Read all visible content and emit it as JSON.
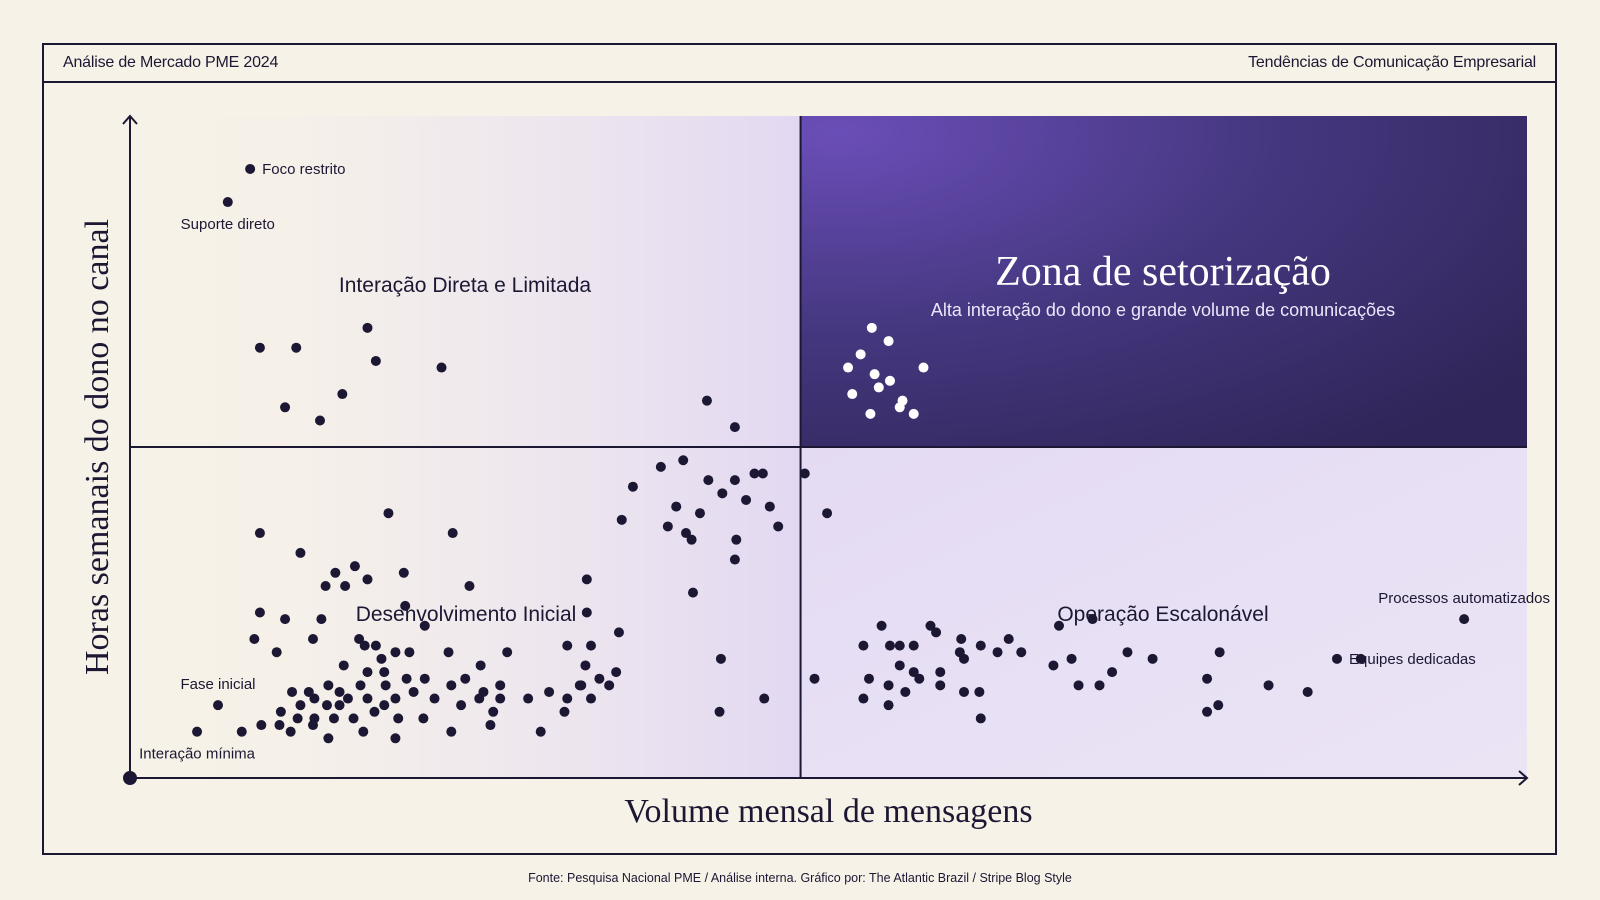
{
  "header": {
    "left": "Análise de Mercado PME 2024",
    "right": "Tendências de Comunicação Empresarial"
  },
  "footer": {
    "source": "Fonte: Pesquisa Nacional PME / Análise interna. Gráfico por: The Atlantic Brazil / Stripe Blog Style"
  },
  "colors": {
    "background": "#f7f2e7",
    "ink": "#1c1733",
    "zone_dark": "#3a2c72",
    "zone_light": "#e6def4",
    "zone_point": "#ffffff"
  },
  "chart_data": {
    "type": "scatter",
    "xlabel": "Volume mensal de mensagens",
    "ylabel": "Horas semanais do dono no canal",
    "xlim": [
      0,
      100
    ],
    "ylim": [
      0,
      100
    ],
    "x_divider": 48,
    "y_divider": 50,
    "grid": false,
    "quadrant_titles": {
      "top_left": "Interação Direta e Limitada",
      "bottom_left": "Desenvolvimento Inicial",
      "bottom_right": "Operação Escalonável",
      "top_right": "Zona de setorização",
      "top_right_subtitle": "Alta interação do dono e grande volume de comunicações"
    },
    "annotations": [
      {
        "text": "Foco restrito",
        "x": 8.6,
        "y": 92,
        "side": "right"
      },
      {
        "text": "Suporte direto",
        "x": 7.0,
        "y": 87,
        "side": "below"
      },
      {
        "text": "Fase inicial",
        "x": 6.3,
        "y": 11,
        "side": "above"
      },
      {
        "text": "Interação mínima",
        "x": 4.8,
        "y": 7,
        "side": "below"
      },
      {
        "text": "Processos automatizados",
        "x": 95.5,
        "y": 24,
        "side": "above"
      },
      {
        "text": "Equipes dedicadas",
        "x": 86.4,
        "y": 18,
        "side": "right"
      }
    ],
    "series": [
      {
        "style": "dark",
        "points": [
          [
            8.6,
            92
          ],
          [
            7.0,
            87
          ],
          [
            9.3,
            65
          ],
          [
            11.9,
            65
          ],
          [
            17.0,
            68
          ],
          [
            17.6,
            63
          ],
          [
            22.3,
            62
          ],
          [
            11.1,
            56
          ],
          [
            15.2,
            58
          ],
          [
            13.6,
            54
          ],
          [
            6.3,
            11
          ],
          [
            4.8,
            7
          ],
          [
            9.3,
            37
          ],
          [
            12.2,
            34
          ],
          [
            14.7,
            31
          ],
          [
            17.0,
            30
          ],
          [
            16.1,
            32
          ],
          [
            19.6,
            31
          ],
          [
            18.5,
            40
          ],
          [
            23.1,
            37
          ],
          [
            9.3,
            25
          ],
          [
            11.1,
            24
          ],
          [
            13.7,
            24
          ],
          [
            14.0,
            29
          ],
          [
            15.4,
            29
          ],
          [
            8.9,
            21
          ],
          [
            16.4,
            21
          ],
          [
            17.6,
            20
          ],
          [
            19.7,
            26
          ],
          [
            21.1,
            23
          ],
          [
            24.3,
            29
          ],
          [
            18.0,
            18
          ],
          [
            19.0,
            19
          ],
          [
            16.8,
            20
          ],
          [
            13.1,
            21
          ],
          [
            10.5,
            19
          ],
          [
            15.3,
            17
          ],
          [
            18.2,
            16
          ],
          [
            20.0,
            19
          ],
          [
            22.8,
            19
          ],
          [
            25.1,
            17
          ],
          [
            27.0,
            19
          ],
          [
            33.0,
            20
          ],
          [
            35.0,
            22
          ],
          [
            11.6,
            13
          ],
          [
            12.8,
            13
          ],
          [
            14.2,
            14
          ],
          [
            15.0,
            13
          ],
          [
            16.5,
            14
          ],
          [
            17.0,
            16
          ],
          [
            18.3,
            14
          ],
          [
            19.8,
            15
          ],
          [
            21.1,
            15
          ],
          [
            23.0,
            14
          ],
          [
            24.0,
            15
          ],
          [
            25.3,
            13
          ],
          [
            26.5,
            14
          ],
          [
            12.2,
            11
          ],
          [
            13.2,
            12
          ],
          [
            14.1,
            11
          ],
          [
            15.0,
            11
          ],
          [
            15.6,
            12
          ],
          [
            17.0,
            12
          ],
          [
            18.2,
            11
          ],
          [
            19.0,
            12
          ],
          [
            20.3,
            13
          ],
          [
            21.8,
            12
          ],
          [
            23.7,
            11
          ],
          [
            25.0,
            12
          ],
          [
            26.5,
            12
          ],
          [
            28.5,
            12
          ],
          [
            30.0,
            13
          ],
          [
            31.3,
            12
          ],
          [
            32.2,
            14
          ],
          [
            33.0,
            12
          ],
          [
            34.3,
            14
          ],
          [
            10.8,
            10
          ],
          [
            12.0,
            9
          ],
          [
            13.2,
            9
          ],
          [
            14.6,
            9
          ],
          [
            16.0,
            9
          ],
          [
            17.5,
            10
          ],
          [
            19.2,
            9
          ],
          [
            21.0,
            9
          ],
          [
            23.0,
            7
          ],
          [
            26.0,
            10
          ],
          [
            8.0,
            7
          ],
          [
            9.4,
            8
          ],
          [
            10.7,
            8
          ],
          [
            11.5,
            7
          ],
          [
            13.1,
            8
          ],
          [
            14.2,
            6
          ],
          [
            16.7,
            7
          ],
          [
            19.0,
            6
          ],
          [
            25.8,
            8
          ],
          [
            31.1,
            10
          ],
          [
            29.4,
            7
          ],
          [
            43.3,
            53
          ],
          [
            41.3,
            57
          ],
          [
            38.5,
            38
          ],
          [
            32.7,
            30
          ],
          [
            35.2,
            39
          ],
          [
            36.0,
            44
          ],
          [
            38.0,
            47
          ],
          [
            39.6,
            48
          ],
          [
            41.4,
            45
          ],
          [
            43.3,
            45
          ],
          [
            44.7,
            46
          ],
          [
            42.4,
            43
          ],
          [
            44.1,
            42
          ],
          [
            45.8,
            41
          ],
          [
            40.8,
            40
          ],
          [
            43.4,
            36
          ],
          [
            39.1,
            41
          ],
          [
            39.8,
            37
          ],
          [
            46.4,
            38
          ],
          [
            40.2,
            36
          ],
          [
            45.3,
            46
          ],
          [
            43.3,
            33
          ],
          [
            32.7,
            25
          ],
          [
            40.3,
            28
          ],
          [
            32.3,
            14
          ],
          [
            33.6,
            15
          ],
          [
            34.8,
            16
          ],
          [
            32.6,
            17
          ],
          [
            31.3,
            20
          ],
          [
            42.3,
            18
          ],
          [
            42.2,
            10
          ],
          [
            45.4,
            12
          ],
          [
            48.3,
            46
          ],
          [
            49.9,
            40
          ],
          [
            49.0,
            15
          ],
          [
            52.5,
            20
          ],
          [
            55.1,
            20
          ],
          [
            73.2,
            18
          ],
          [
            53.8,
            23
          ],
          [
            54.4,
            20
          ],
          [
            55.1,
            17
          ],
          [
            56.1,
            20
          ],
          [
            57.3,
            23
          ],
          [
            57.7,
            22
          ],
          [
            59.5,
            21
          ],
          [
            60.9,
            20
          ],
          [
            62.1,
            19
          ],
          [
            56.1,
            16
          ],
          [
            59.7,
            18
          ],
          [
            52.9,
            15
          ],
          [
            54.3,
            14
          ],
          [
            56.5,
            15
          ],
          [
            58.0,
            16
          ],
          [
            59.4,
            19
          ],
          [
            55.5,
            13
          ],
          [
            58.0,
            14
          ],
          [
            59.7,
            13
          ],
          [
            60.8,
            13
          ],
          [
            52.5,
            12
          ],
          [
            54.3,
            11
          ],
          [
            60.9,
            9
          ],
          [
            62.9,
            21
          ],
          [
            63.8,
            19
          ],
          [
            66.1,
            17
          ],
          [
            68.9,
            24
          ],
          [
            67.4,
            18
          ],
          [
            66.5,
            23
          ],
          [
            67.9,
            14
          ],
          [
            69.4,
            14
          ],
          [
            71.4,
            19
          ],
          [
            70.3,
            16
          ],
          [
            78.0,
            19
          ],
          [
            77.1,
            15
          ],
          [
            77.9,
            11
          ],
          [
            84.3,
            13
          ],
          [
            77.1,
            10
          ],
          [
            81.5,
            14
          ],
          [
            88.1,
            18
          ],
          [
            95.5,
            24
          ],
          [
            86.4,
            18
          ]
        ]
      },
      {
        "style": "light",
        "points": [
          [
            53.1,
            68
          ],
          [
            52.3,
            64
          ],
          [
            51.4,
            62
          ],
          [
            53.3,
            61
          ],
          [
            54.3,
            66
          ],
          [
            53.6,
            59
          ],
          [
            55.3,
            57
          ],
          [
            51.7,
            58
          ],
          [
            53.0,
            55
          ],
          [
            54.4,
            60
          ],
          [
            55.1,
            56
          ],
          [
            56.8,
            62
          ],
          [
            56.1,
            55
          ]
        ]
      }
    ]
  }
}
